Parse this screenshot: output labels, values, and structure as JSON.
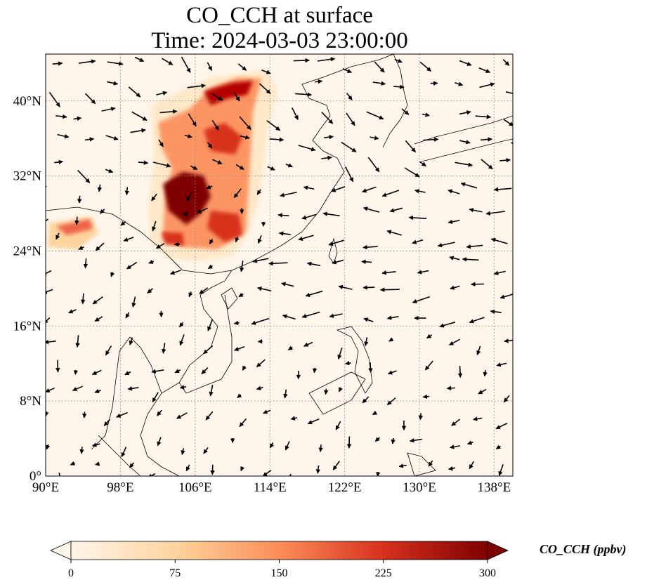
{
  "title": {
    "line1": "CO_CCH at surface",
    "line2": "Time: 2024-03-03 23:00:00"
  },
  "map": {
    "lon_range": [
      90,
      140
    ],
    "lat_range": [
      0,
      45
    ],
    "lon_ticks": [
      "90°E",
      "98°E",
      "106°E",
      "114°E",
      "122°E",
      "130°E",
      "138°E"
    ],
    "lat_ticks": [
      "0°",
      "8°N",
      "16°N",
      "24°N",
      "32°N",
      "40°N"
    ],
    "background_color": "#fff5eb",
    "gridlines": "dotted",
    "wind_vectors": "black arrows"
  },
  "colorbar": {
    "label": "CO_CCH (ppbv)",
    "ticks": [
      "0",
      "75",
      "150",
      "225",
      "300"
    ],
    "range": [
      0,
      300
    ],
    "colormap": "OrRd",
    "colors": [
      "#fff5eb",
      "#fdd49e",
      "#fc8d59",
      "#d7301f",
      "#7f0000"
    ],
    "extend": "both"
  }
}
